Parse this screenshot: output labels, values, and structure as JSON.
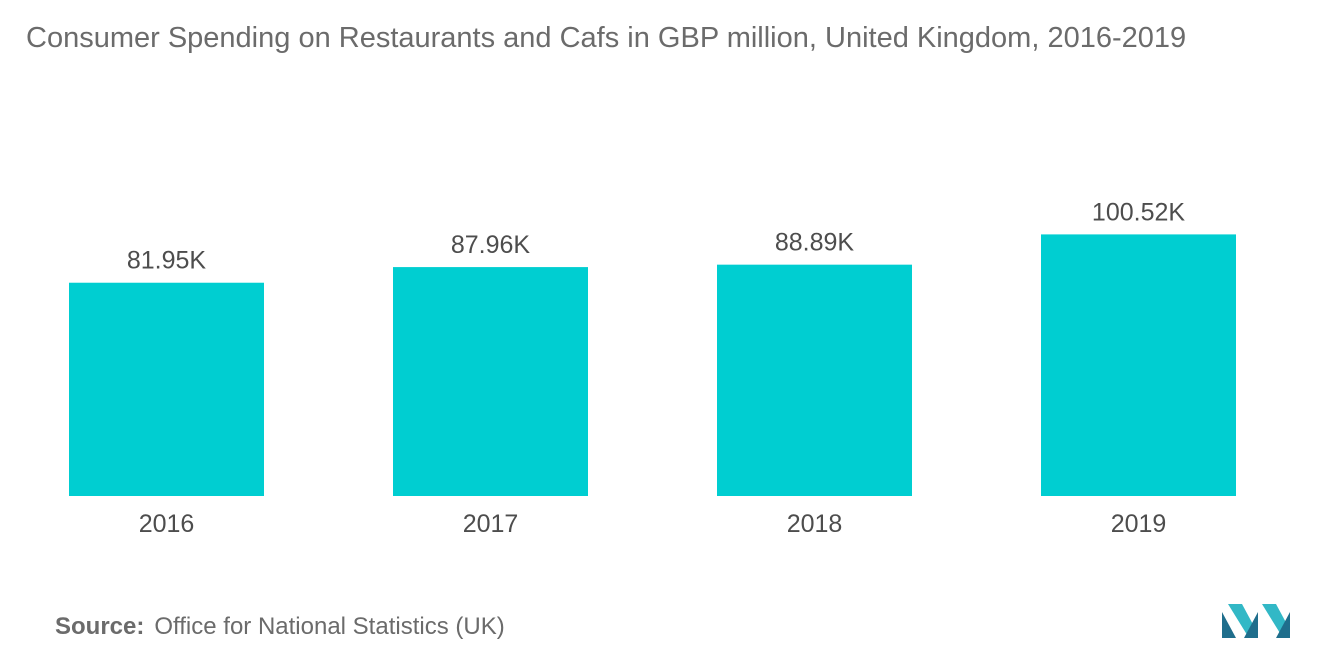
{
  "title": "Consumer Spending on Restaurants and Cafs in GBP million, United Kingdom, 2016-2019",
  "source": {
    "label": "Source:",
    "text": "Office for National Statistics (UK)"
  },
  "colors": {
    "bar": "#00ced1",
    "text": "#4d4d4d",
    "title": "#6b6b6b",
    "logo_dark": "#1f6e8c",
    "logo_light": "#32b8c6"
  },
  "logo": {
    "icon": "mordor-intelligence-logo"
  },
  "chart_data": {
    "type": "bar",
    "title": "Consumer Spending on Restaurants and Cafs in GBP million, United Kingdom, 2016-2019",
    "categories": [
      "2016",
      "2017",
      "2018",
      "2019"
    ],
    "values": [
      81950,
      87960,
      88890,
      100520
    ],
    "value_labels": [
      "81.95K",
      "87.96K",
      "88.89K",
      "100.52K"
    ],
    "xlabel": "",
    "ylabel": "",
    "grid": false,
    "legend": "none",
    "y_axis_shown": false
  }
}
